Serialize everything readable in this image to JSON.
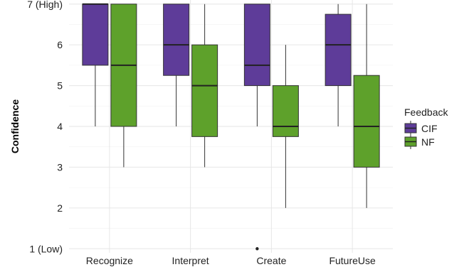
{
  "chart_data": {
    "type": "boxplot",
    "ylabel": "Confidence",
    "xlabel": "",
    "ylim": [
      0.9,
      7.1
    ],
    "y_ticks": [
      {
        "value": 1,
        "label": "1 (Low)"
      },
      {
        "value": 2,
        "label": "2"
      },
      {
        "value": 3,
        "label": "3"
      },
      {
        "value": 4,
        "label": "4"
      },
      {
        "value": 5,
        "label": "5"
      },
      {
        "value": 6,
        "label": "6"
      },
      {
        "value": 7,
        "label": "7 (High)"
      }
    ],
    "categories": [
      "Recognize",
      "Interpret",
      "Create",
      "FutureUse"
    ],
    "legend": {
      "title": "Feedback",
      "position": "right"
    },
    "grid": true,
    "series": [
      {
        "name": "CIF",
        "color": "#5e3c99",
        "boxes": [
          {
            "category": "Recognize",
            "min": 4,
            "q1": 5.5,
            "median": 7,
            "q3": 7,
            "max": 7,
            "outliers": []
          },
          {
            "category": "Interpret",
            "min": 4,
            "q1": 5.25,
            "median": 6,
            "q3": 7,
            "max": 7,
            "outliers": []
          },
          {
            "category": "Create",
            "min": 4,
            "q1": 5,
            "median": 5.5,
            "q3": 7,
            "max": 7,
            "outliers": [
              1
            ]
          },
          {
            "category": "FutureUse",
            "min": 4,
            "q1": 5,
            "median": 6,
            "q3": 6.75,
            "max": 7,
            "outliers": []
          }
        ]
      },
      {
        "name": "NF",
        "color": "#5ea12b",
        "boxes": [
          {
            "category": "Recognize",
            "min": 3,
            "q1": 4,
            "median": 5.5,
            "q3": 7,
            "max": 7,
            "outliers": []
          },
          {
            "category": "Interpret",
            "min": 3,
            "q1": 3.75,
            "median": 5,
            "q3": 6,
            "max": 7,
            "outliers": []
          },
          {
            "category": "Create",
            "min": 2,
            "q1": 3.75,
            "median": 4,
            "q3": 5,
            "max": 6,
            "outliers": []
          },
          {
            "category": "FutureUse",
            "min": 2,
            "q1": 3,
            "median": 4,
            "q3": 5.25,
            "max": 7,
            "outliers": []
          }
        ]
      }
    ]
  }
}
